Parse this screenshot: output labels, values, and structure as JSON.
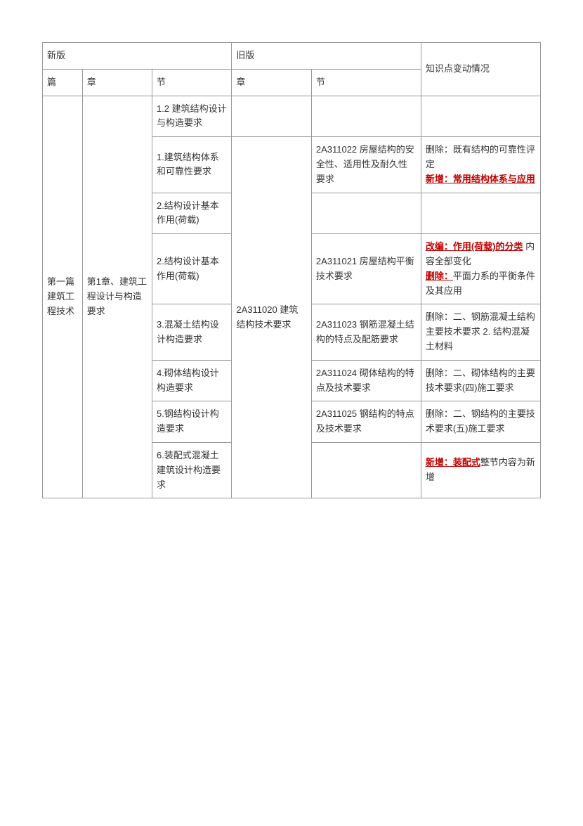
{
  "colors": {
    "border": "#999999",
    "text": "#333333",
    "highlight": "#c00000",
    "background": "#ffffff"
  },
  "header": {
    "new_version": "新版",
    "old_version": "旧版",
    "changes": "知识点变动情况",
    "pian": "篇",
    "zhang_new": "章",
    "jie_new": "节",
    "zhang_old": "章",
    "jie_old": "节"
  },
  "pian_label": "第一篇 建筑工程技术",
  "zhang_label": "第1章、建筑工程设计与构造要求",
  "old_zhang": "2A311020 建筑结构技术要求",
  "rows": [
    {
      "jie_new": "1.2 建筑结构设计与构造要求",
      "jie_old": "",
      "change_plain": "",
      "change_highlight_prefix": "",
      "change_plain2": ""
    },
    {
      "jie_new": "1.建筑结构体系和可靠性要求",
      "jie_old": "2A311022 房屋结构的安全性、适用性及耐久性要求",
      "change_plain": "删除：既有结构的可靠性评定",
      "change_highlight_prefix": "新增：常用结构体系与应用",
      "change_plain2": ""
    },
    {
      "jie_new": "2.结构设计基本作用(荷载)",
      "jie_old": "",
      "change_plain": "",
      "change_highlight_prefix": "",
      "change_plain2": ""
    },
    {
      "jie_new": "2.结构设计基本作用(荷载)",
      "jie_old": "2A311021 房屋结构平衡技术要求",
      "h1": "改编：作用(荷载)的分类",
      "p1": " 内容全部变化",
      "h2": "删除：",
      "p2": "平面力系的平衡条件及其应用"
    },
    {
      "jie_new": "3.混凝土结构设计构造要求",
      "jie_old": "2A311023 钢筋混凝土结构的特点及配筋要求",
      "change_plain": "删除：二、钢筋混凝土结构主要技术要求 2. 结构混凝土材料",
      "change_highlight_prefix": "",
      "change_plain2": ""
    },
    {
      "jie_new": "4.砌体结构设计构造要求",
      "jie_old": "2A311024 砌体结构的特点及技术要求",
      "change_plain": "删除：二、砌体结构的主要技术要求(四)施工要求",
      "change_highlight_prefix": "",
      "change_plain2": ""
    },
    {
      "jie_new": "5.钢结构设计构造要求",
      "jie_old": "2A311025 钢结构的特点及技术要求",
      "change_plain": "删除：二、钢结构的主要技术要求(五)施工要求",
      "change_highlight_prefix": "",
      "change_plain2": ""
    },
    {
      "jie_new": "6.装配式混凝土建筑设计构造要求",
      "jie_old": "",
      "h_last": "新增：装配式",
      "p_last": "整节内容为新增"
    }
  ]
}
